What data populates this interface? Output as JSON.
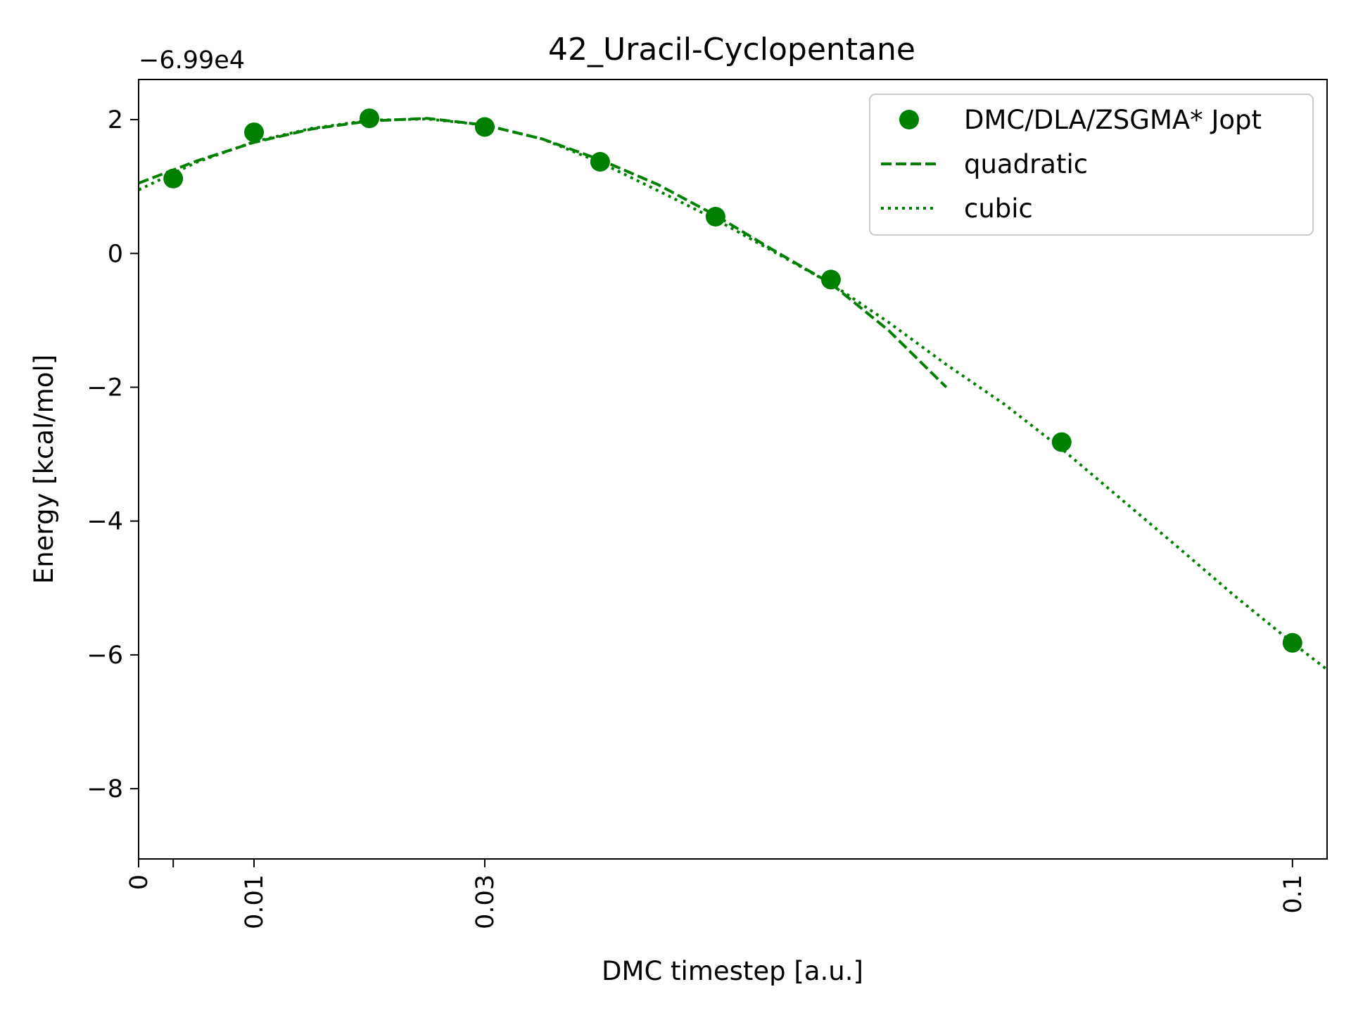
{
  "chart_data": {
    "type": "scatter",
    "title": "42_Uracil-Cyclopentane",
    "xlabel": "DMC timestep [a.u.]",
    "ylabel": "Energy [kcal/mol]",
    "offset_label": "−6.99e4",
    "y_offset": -69900,
    "xlim": [
      0,
      0.103
    ],
    "ylim": [
      -9.05,
      2.6
    ],
    "x_ticks": [
      0,
      0.003,
      0.01,
      0.03,
      0.1
    ],
    "x_tick_labels": [
      "0",
      "",
      "0.01",
      "0.03",
      "0.1"
    ],
    "y_ticks": [
      -8,
      -6,
      -4,
      -2,
      0,
      2
    ],
    "y_tick_labels": [
      "−8",
      "−6",
      "−4",
      "−2",
      "0",
      "2"
    ],
    "grid": false,
    "legend_position": "top-right",
    "color": "#008000",
    "series": [
      {
        "name": "DMC/DLA/ZSGMA* Jopt",
        "style": "markers",
        "x": [
          0.003,
          0.01,
          0.02,
          0.03,
          0.04,
          0.05,
          0.06,
          0.08,
          0.1
        ],
        "y": [
          1.12,
          1.81,
          2.02,
          1.89,
          1.37,
          0.55,
          -0.39,
          -2.82,
          -5.82
        ]
      },
      {
        "name": "quadratic",
        "style": "dashed",
        "x": [
          0,
          0.005,
          0.01,
          0.015,
          0.02,
          0.025,
          0.03,
          0.035,
          0.04,
          0.045,
          0.05,
          0.055,
          0.06,
          0.065,
          0.07
        ],
        "y": [
          1.05,
          1.38,
          1.66,
          1.86,
          1.98,
          2.02,
          1.92,
          1.71,
          1.4,
          1.03,
          0.57,
          0.05,
          -0.45,
          -1.15,
          -2.0
        ]
      },
      {
        "name": "cubic",
        "style": "dotted",
        "x": [
          0,
          0.005,
          0.01,
          0.015,
          0.02,
          0.025,
          0.03,
          0.035,
          0.04,
          0.045,
          0.05,
          0.055,
          0.06,
          0.065,
          0.07,
          0.075,
          0.08,
          0.085,
          0.09,
          0.095,
          0.1,
          0.103
        ],
        "y": [
          0.95,
          1.36,
          1.67,
          1.87,
          1.99,
          2.01,
          1.92,
          1.71,
          1.36,
          0.94,
          0.51,
          0.03,
          -0.45,
          -1.03,
          -1.66,
          -2.25,
          -2.92,
          -3.65,
          -4.38,
          -5.12,
          -5.82,
          -6.22
        ]
      }
    ]
  }
}
